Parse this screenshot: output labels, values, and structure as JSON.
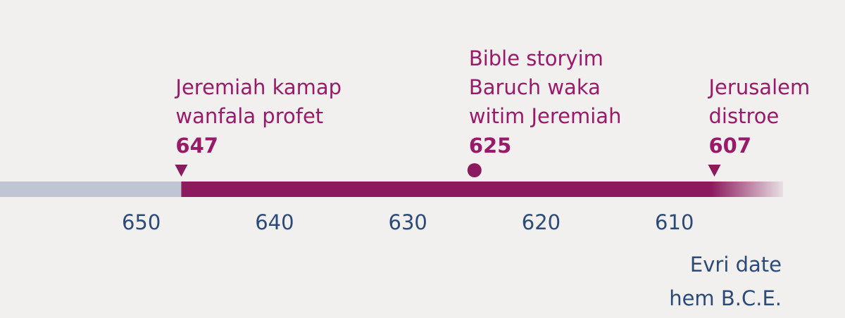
{
  "chart_data": {
    "type": "timeline",
    "xlim": [
      660.6,
      597.2
    ],
    "xticks": [
      650,
      640,
      630,
      620,
      610
    ],
    "events": [
      {
        "lines": [
          "Jeremiah kamap",
          "wanfala profet"
        ],
        "year": 647,
        "marker": "triangle"
      },
      {
        "lines": [
          "Bible storyim",
          "Baruch waka",
          "witim Jeremiah"
        ],
        "year": 625,
        "marker": "circle"
      },
      {
        "lines": [
          "Jerusalem",
          "distroe"
        ],
        "year": 607,
        "marker": "triangle"
      }
    ],
    "before_color": "#c0c5d3",
    "color": "#8b1a5e",
    "note": [
      "Evri date",
      "hem B.C.E."
    ]
  }
}
